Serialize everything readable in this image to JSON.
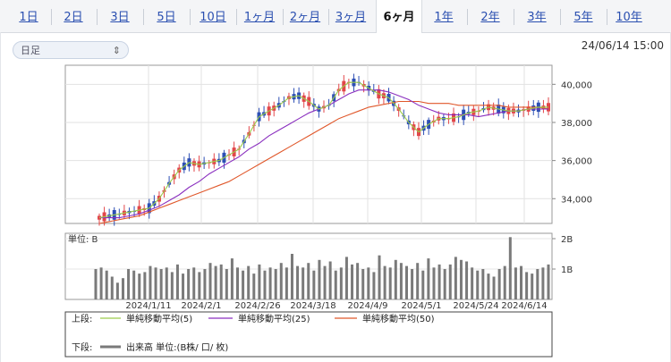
{
  "tabs": [
    "1日",
    "2日",
    "3日",
    "5日",
    "10日",
    "1ヶ月",
    "2ヶ月",
    "3ヶ月",
    "6ヶ月",
    "1年",
    "2年",
    "3年",
    "5年",
    "10年"
  ],
  "active_tab_index": 8,
  "period_select": {
    "value": "日足"
  },
  "datetime": "24/06/14 15:00",
  "volume_unit_label": "単位: B",
  "legend": {
    "upper_label": "上段:",
    "lower_label": "下段:",
    "ma5": "単純移動平均(5)",
    "ma25": "単純移動平均(25)",
    "ma50": "単純移動平均(50)",
    "volume": "出来高 単位:(B株/ 口/ 枚)"
  },
  "colors": {
    "up": "#e2464a",
    "down": "#2d4fb5",
    "ma5": "#9ccc4a",
    "ma25": "#8a2fbf",
    "ma50": "#e0572a",
    "volume": "#7a7a7a"
  },
  "chart_data": [
    {
      "type": "candlestick",
      "x_ticks": [
        "2024/1/11",
        "2024/2/1",
        "2024/2/26",
        "2024/3/18",
        "2024/4/9",
        "2024/5/1",
        "2024/5/24",
        "2024/6/14"
      ],
      "y_ticks": [
        "40,000",
        "38,000",
        "36,000",
        "34,000"
      ],
      "ylim": [
        32700,
        41000
      ],
      "series": [
        {
          "name": "単純移動平均(5)",
          "values": [
            33000,
            33100,
            33200,
            33300,
            33400,
            33500,
            34000,
            34800,
            35500,
            35900,
            35800,
            35900,
            36000,
            36300,
            36600,
            37400,
            38300,
            38600,
            38900,
            39300,
            39400,
            39100,
            38700,
            38900,
            39700,
            40100,
            40100,
            39800,
            39500,
            39300,
            38700,
            38000,
            37500,
            37900,
            38200,
            38200,
            38300,
            38500,
            38600,
            38800,
            38700,
            38600,
            38600,
            38700,
            38800,
            38800
          ]
        },
        {
          "name": "単純移動平均(25)",
          "values": [
            33000,
            33000,
            33000,
            33100,
            33200,
            33400,
            33600,
            33900,
            34200,
            34600,
            34900,
            35300,
            35600,
            35900,
            36200,
            36600,
            36900,
            37300,
            37600,
            37900,
            38200,
            38500,
            38700,
            38900,
            39200,
            39500,
            39700,
            39700,
            39700,
            39600,
            39400,
            39200,
            38900,
            38700,
            38500,
            38400,
            38400,
            38400,
            38300,
            38400,
            38500,
            38600,
            38600,
            38700,
            38700,
            38700
          ]
        },
        {
          "name": "単純移動平均(50)",
          "values": [
            32700,
            32800,
            32900,
            33000,
            33100,
            33300,
            33500,
            33700,
            33900,
            34100,
            34300,
            34500,
            34700,
            34900,
            35200,
            35500,
            35800,
            36100,
            36400,
            36700,
            37000,
            37300,
            37600,
            37900,
            38200,
            38400,
            38600,
            38800,
            38900,
            39000,
            39100,
            39100,
            39100,
            39000,
            39000,
            39000,
            38900,
            38900,
            38900,
            38900,
            38900,
            38800,
            38800,
            38800,
            38800,
            38700
          ]
        }
      ]
    },
    {
      "type": "bar",
      "y_ticks": [
        "2B",
        "1B"
      ],
      "ylim": [
        0,
        2
      ],
      "values": [
        1.0,
        1.05,
        0.95,
        0.75,
        0.55,
        0.7,
        1.0,
        0.95,
        0.85,
        0.9,
        1.1,
        1.05,
        1.0,
        1.05,
        0.9,
        1.15,
        0.85,
        1.0,
        1.05,
        0.9,
        1.0,
        1.2,
        1.1,
        1.15,
        1.0,
        1.35,
        1.05,
        0.95,
        1.1,
        0.85,
        1.15,
        0.95,
        1.05,
        1.0,
        1.2,
        1.05,
        1.5,
        1.1,
        1.05,
        1.2,
        0.95,
        1.3,
        1.1,
        1.25,
        0.95,
        1.05,
        1.4,
        1.15,
        1.2,
        1.0,
        1.05,
        0.9,
        1.45,
        1.1,
        1.05,
        1.3,
        1.2,
        1.1,
        1.0,
        1.2,
        0.95,
        1.35,
        1.05,
        1.15,
        1.0,
        1.15,
        1.4,
        1.3,
        1.25,
        1.05,
        0.95,
        1.0,
        0.85,
        0.75,
        1.0,
        1.1,
        2.05,
        1.05,
        1.1,
        0.9,
        0.85,
        1.0,
        1.05,
        1.15
      ]
    }
  ]
}
